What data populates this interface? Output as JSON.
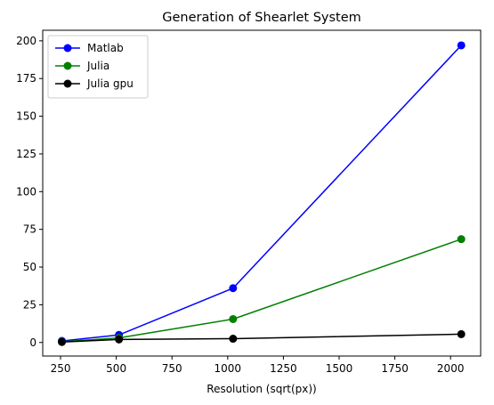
{
  "chart_data": {
    "type": "line",
    "title": "Generation of Shearlet System",
    "xlabel": "Resolution (sqrt(px))",
    "ylabel": "",
    "x": [
      256,
      512,
      1024,
      2048
    ],
    "xlim": [
      170,
      2135
    ],
    "ylim": [
      -9,
      207
    ],
    "xticks": [
      250,
      500,
      750,
      1000,
      1250,
      1500,
      1750,
      2000
    ],
    "yticks": [
      0,
      25,
      50,
      75,
      100,
      125,
      150,
      175,
      200
    ],
    "grid": false,
    "legend_position": "top-left",
    "series": [
      {
        "name": "Matlab",
        "color": "#0000ff",
        "values": [
          1,
          5,
          36,
          197
        ]
      },
      {
        "name": "Julia",
        "color": "#008000",
        "values": [
          0.5,
          3,
          15.5,
          68.5
        ]
      },
      {
        "name": "Julia gpu",
        "color": "#000000",
        "values": [
          0.3,
          2,
          2.5,
          5.5
        ]
      }
    ]
  }
}
